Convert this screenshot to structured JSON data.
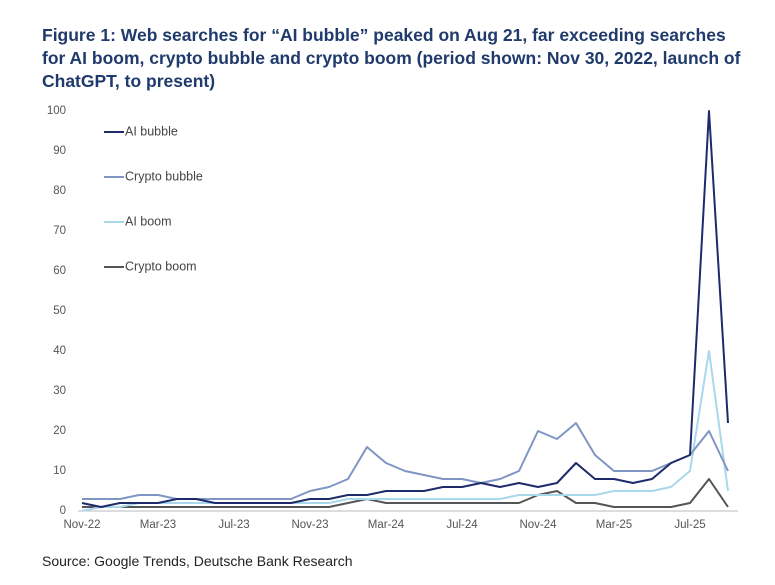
{
  "chart_data": {
    "type": "line",
    "title": "Figure 1: Web searches for “AI bubble” peaked on Aug 21, far exceeding searches for AI boom, crypto bubble and crypto boom (period shown: Nov 30, 2022, launch of ChatGPT, to present)",
    "source": "Source: Google Trends, Deutsche Bank Research",
    "categories": [
      "Nov-22",
      null,
      null,
      null,
      "Mar-23",
      null,
      null,
      null,
      "Jul-23",
      null,
      null,
      null,
      "Nov-23",
      null,
      null,
      null,
      "Mar-24",
      null,
      null,
      null,
      "Jul-24",
      null,
      null,
      null,
      "Nov-24",
      null,
      null,
      null,
      "Mar-25",
      null,
      null,
      null,
      "Jul-25",
      null,
      null
    ],
    "ylim": [
      0,
      100
    ],
    "yticks": [
      0,
      10,
      20,
      30,
      40,
      50,
      60,
      70,
      80,
      90,
      100
    ],
    "legend": "top-left",
    "series": [
      {
        "name": "AI bubble",
        "color": "#1f2a6b",
        "values": [
          2,
          1,
          2,
          2,
          2,
          3,
          3,
          2,
          2,
          2,
          2,
          2,
          3,
          3,
          4,
          4,
          5,
          5,
          5,
          6,
          6,
          7,
          6,
          7,
          6,
          7,
          12,
          8,
          8,
          7,
          8,
          12,
          14,
          100,
          22
        ]
      },
      {
        "name": "Crypto bubble",
        "color": "#7f96c4",
        "values": [
          3,
          3,
          3,
          4,
          4,
          3,
          3,
          3,
          3,
          3,
          3,
          3,
          5,
          6,
          8,
          16,
          12,
          10,
          9,
          8,
          8,
          7,
          8,
          10,
          20,
          18,
          22,
          14,
          10,
          10,
          10,
          12,
          14,
          20,
          10
        ]
      },
      {
        "name": "AI boom",
        "color": "#a8d8ea",
        "values": [
          0,
          1,
          1,
          2,
          2,
          2,
          2,
          2,
          2,
          2,
          2,
          2,
          2,
          2,
          3,
          3,
          3,
          3,
          3,
          3,
          3,
          3,
          3,
          4,
          4,
          4,
          4,
          4,
          5,
          5,
          5,
          6,
          10,
          40,
          5
        ]
      },
      {
        "name": "Crypto boom",
        "color": "#555555",
        "values": [
          1,
          1,
          1,
          1,
          1,
          1,
          1,
          1,
          1,
          1,
          1,
          1,
          1,
          1,
          2,
          3,
          2,
          2,
          2,
          2,
          2,
          2,
          2,
          2,
          4,
          5,
          2,
          2,
          1,
          1,
          1,
          1,
          2,
          8,
          1
        ]
      }
    ]
  }
}
